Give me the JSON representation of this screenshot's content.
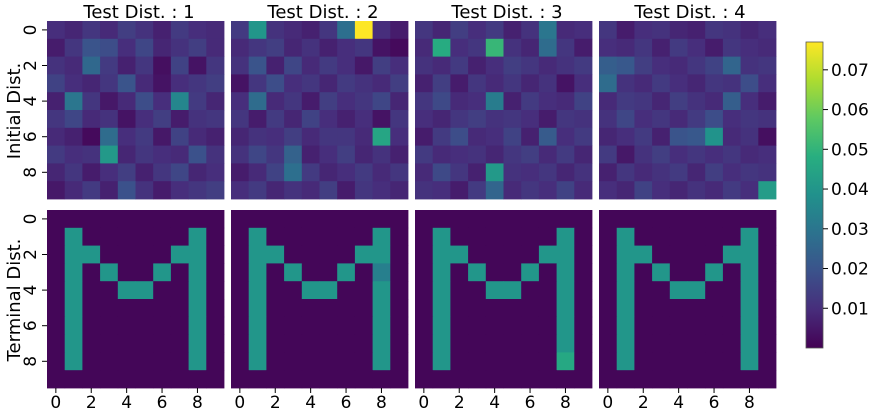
{
  "chart_data": {
    "type": "heatmap",
    "colormap": "viridis",
    "grid_size": 10,
    "column_titles": [
      "Test Dist. : 1",
      "Test Dist. : 2",
      "Test Dist. : 3",
      "Test Dist. : 4"
    ],
    "row_labels": [
      "Initial Dist.",
      "Terminal Dist."
    ],
    "axis_ticks": [
      "0",
      "2",
      "4",
      "6",
      "8"
    ],
    "colorbar": {
      "vmin": 0.0,
      "vmax": 0.077,
      "tick_values": [
        0.01,
        0.02,
        0.03,
        0.04,
        0.05,
        0.06,
        0.07
      ],
      "tick_labels": [
        "0.01",
        "0.02",
        "0.03",
        "0.04",
        "0.05",
        "0.06",
        "0.07"
      ]
    },
    "panels": [
      {
        "row": "Initial Dist.",
        "test_dist": 1,
        "values": [
          [
            0.01,
            0.008,
            0.012,
            0.009,
            0.014,
            0.011,
            0.007,
            0.013,
            0.01,
            0.009
          ],
          [
            0.006,
            0.012,
            0.02,
            0.018,
            0.01,
            0.016,
            0.008,
            0.011,
            0.014,
            0.009
          ],
          [
            0.011,
            0.009,
            0.026,
            0.013,
            0.007,
            0.012,
            0.003,
            0.015,
            0.004,
            0.012
          ],
          [
            0.015,
            0.01,
            0.008,
            0.012,
            0.02,
            0.009,
            0.004,
            0.01,
            0.012,
            0.014
          ],
          [
            0.007,
            0.03,
            0.012,
            0.005,
            0.009,
            0.018,
            0.01,
            0.035,
            0.013,
            0.008
          ],
          [
            0.012,
            0.016,
            0.009,
            0.011,
            0.004,
            0.01,
            0.014,
            0.006,
            0.011,
            0.012
          ],
          [
            0.009,
            0.007,
            0.002,
            0.027,
            0.01,
            0.013,
            0.005,
            0.015,
            0.009,
            0.007
          ],
          [
            0.013,
            0.01,
            0.011,
            0.041,
            0.008,
            0.012,
            0.01,
            0.009,
            0.019,
            0.011
          ],
          [
            0.008,
            0.012,
            0.006,
            0.01,
            0.014,
            0.007,
            0.012,
            0.016,
            0.008,
            0.01
          ],
          [
            0.005,
            0.009,
            0.013,
            0.007,
            0.019,
            0.011,
            0.006,
            0.01,
            0.012,
            0.014
          ]
        ]
      },
      {
        "row": "Initial Dist.",
        "test_dist": 2,
        "values": [
          [
            0.013,
            0.04,
            0.011,
            0.009,
            0.007,
            0.012,
            0.028,
            0.077,
            0.01,
            0.006
          ],
          [
            0.009,
            0.012,
            0.014,
            0.008,
            0.011,
            0.007,
            0.01,
            0.012,
            0.004,
            0.002
          ],
          [
            0.011,
            0.02,
            0.007,
            0.016,
            0.009,
            0.013,
            0.01,
            0.005,
            0.014,
            0.01
          ],
          [
            0.004,
            0.012,
            0.018,
            0.01,
            0.012,
            0.008,
            0.013,
            0.011,
            0.009,
            0.014
          ],
          [
            0.01,
            0.027,
            0.009,
            0.012,
            0.006,
            0.014,
            0.01,
            0.012,
            0.016,
            0.008
          ],
          [
            0.012,
            0.006,
            0.013,
            0.008,
            0.015,
            0.01,
            0.007,
            0.01,
            0.004,
            0.012
          ],
          [
            0.008,
            0.011,
            0.01,
            0.014,
            0.009,
            0.012,
            0.012,
            0.009,
            0.045,
            0.01
          ],
          [
            0.011,
            0.016,
            0.012,
            0.024,
            0.007,
            0.01,
            0.014,
            0.008,
            0.011,
            0.007
          ],
          [
            0.006,
            0.009,
            0.015,
            0.028,
            0.013,
            0.008,
            0.01,
            0.013,
            0.009,
            0.012
          ],
          [
            0.01,
            0.013,
            0.008,
            0.011,
            0.009,
            0.014,
            0.006,
            0.012,
            0.01,
            0.008
          ]
        ]
      },
      {
        "row": "Initial Dist.",
        "test_dist": 3,
        "values": [
          [
            0.012,
            0.008,
            0.014,
            0.01,
            0.013,
            0.007,
            0.011,
            0.03,
            0.009,
            0.01
          ],
          [
            0.009,
            0.047,
            0.01,
            0.012,
            0.051,
            0.011,
            0.008,
            0.027,
            0.012,
            0.006
          ],
          [
            0.011,
            0.009,
            0.013,
            0.007,
            0.01,
            0.014,
            0.012,
            0.009,
            0.011,
            0.013
          ],
          [
            0.007,
            0.014,
            0.006,
            0.012,
            0.009,
            0.012,
            0.008,
            0.011,
            0.004,
            0.01
          ],
          [
            0.012,
            0.017,
            0.009,
            0.01,
            0.032,
            0.007,
            0.013,
            0.01,
            0.009,
            0.015
          ],
          [
            0.01,
            0.008,
            0.012,
            0.014,
            0.011,
            0.012,
            0.01,
            0.006,
            0.012,
            0.011
          ],
          [
            0.006,
            0.013,
            0.018,
            0.009,
            0.01,
            0.015,
            0.007,
            0.022,
            0.01,
            0.013
          ],
          [
            0.013,
            0.009,
            0.01,
            0.011,
            0.008,
            0.012,
            0.014,
            0.009,
            0.013,
            0.008
          ],
          [
            0.009,
            0.017,
            0.012,
            0.007,
            0.041,
            0.011,
            0.01,
            0.012,
            0.008,
            0.011
          ],
          [
            0.011,
            0.01,
            0.006,
            0.013,
            0.025,
            0.009,
            0.012,
            0.01,
            0.015,
            0.009
          ]
        ]
      },
      {
        "row": "Initial Dist.",
        "test_dist": 4,
        "values": [
          [
            0.012,
            0.006,
            0.01,
            0.011,
            0.008,
            0.007,
            0.012,
            0.011,
            0.008,
            0.01
          ],
          [
            0.01,
            0.009,
            0.012,
            0.007,
            0.013,
            0.01,
            0.006,
            0.012,
            0.01,
            0.009
          ],
          [
            0.023,
            0.021,
            0.014,
            0.01,
            0.009,
            0.012,
            0.015,
            0.025,
            0.011,
            0.012
          ],
          [
            0.027,
            0.011,
            0.009,
            0.013,
            0.01,
            0.008,
            0.012,
            0.011,
            0.018,
            0.01
          ],
          [
            0.009,
            0.013,
            0.012,
            0.008,
            0.014,
            0.011,
            0.009,
            0.023,
            0.01,
            0.006
          ],
          [
            0.011,
            0.016,
            0.01,
            0.012,
            0.009,
            0.013,
            0.018,
            0.01,
            0.012,
            0.011
          ],
          [
            0.008,
            0.01,
            0.013,
            0.007,
            0.02,
            0.021,
            0.039,
            0.009,
            0.011,
            0.003
          ],
          [
            0.013,
            0.005,
            0.011,
            0.014,
            0.01,
            0.012,
            0.01,
            0.012,
            0.009,
            0.01
          ],
          [
            0.007,
            0.012,
            0.009,
            0.011,
            0.013,
            0.008,
            0.014,
            0.01,
            0.012,
            0.011
          ],
          [
            0.01,
            0.008,
            0.015,
            0.01,
            0.008,
            0.011,
            0.009,
            0.013,
            0.01,
            0.042
          ]
        ]
      },
      {
        "row": "Terminal Dist.",
        "test_dist": 1,
        "values": [
          [
            0.001,
            0.001,
            0.001,
            0.001,
            0.001,
            0.001,
            0.001,
            0.001,
            0.001,
            0.001
          ],
          [
            0.001,
            0.04,
            0.001,
            0.001,
            0.001,
            0.001,
            0.001,
            0.001,
            0.04,
            0.001
          ],
          [
            0.001,
            0.04,
            0.04,
            0.001,
            0.001,
            0.001,
            0.001,
            0.04,
            0.04,
            0.001
          ],
          [
            0.001,
            0.04,
            0.001,
            0.04,
            0.001,
            0.001,
            0.04,
            0.001,
            0.04,
            0.001
          ],
          [
            0.001,
            0.04,
            0.001,
            0.001,
            0.04,
            0.04,
            0.001,
            0.001,
            0.04,
            0.001
          ],
          [
            0.001,
            0.04,
            0.001,
            0.001,
            0.001,
            0.001,
            0.001,
            0.001,
            0.04,
            0.001
          ],
          [
            0.001,
            0.04,
            0.001,
            0.001,
            0.001,
            0.001,
            0.001,
            0.001,
            0.04,
            0.001
          ],
          [
            0.001,
            0.04,
            0.001,
            0.001,
            0.001,
            0.001,
            0.001,
            0.001,
            0.04,
            0.001
          ],
          [
            0.001,
            0.04,
            0.001,
            0.001,
            0.001,
            0.001,
            0.001,
            0.001,
            0.04,
            0.001
          ],
          [
            0.001,
            0.001,
            0.001,
            0.001,
            0.001,
            0.001,
            0.001,
            0.001,
            0.001,
            0.001
          ]
        ]
      },
      {
        "row": "Terminal Dist.",
        "test_dist": 2,
        "values": [
          [
            0.001,
            0.001,
            0.001,
            0.001,
            0.001,
            0.001,
            0.001,
            0.001,
            0.001,
            0.001
          ],
          [
            0.001,
            0.04,
            0.001,
            0.001,
            0.001,
            0.001,
            0.001,
            0.001,
            0.04,
            0.001
          ],
          [
            0.001,
            0.04,
            0.04,
            0.001,
            0.001,
            0.001,
            0.001,
            0.04,
            0.04,
            0.001
          ],
          [
            0.001,
            0.04,
            0.001,
            0.04,
            0.001,
            0.001,
            0.04,
            0.001,
            0.033,
            0.001
          ],
          [
            0.001,
            0.04,
            0.001,
            0.001,
            0.04,
            0.04,
            0.001,
            0.001,
            0.04,
            0.001
          ],
          [
            0.001,
            0.04,
            0.001,
            0.001,
            0.001,
            0.001,
            0.001,
            0.001,
            0.04,
            0.001
          ],
          [
            0.001,
            0.04,
            0.001,
            0.001,
            0.001,
            0.001,
            0.001,
            0.001,
            0.04,
            0.001
          ],
          [
            0.001,
            0.04,
            0.001,
            0.001,
            0.001,
            0.001,
            0.001,
            0.001,
            0.04,
            0.001
          ],
          [
            0.001,
            0.04,
            0.001,
            0.001,
            0.001,
            0.001,
            0.001,
            0.001,
            0.04,
            0.001
          ],
          [
            0.001,
            0.001,
            0.001,
            0.001,
            0.001,
            0.001,
            0.001,
            0.001,
            0.001,
            0.001
          ]
        ]
      },
      {
        "row": "Terminal Dist.",
        "test_dist": 3,
        "values": [
          [
            0.001,
            0.001,
            0.001,
            0.001,
            0.001,
            0.001,
            0.001,
            0.001,
            0.001,
            0.001
          ],
          [
            0.001,
            0.04,
            0.001,
            0.001,
            0.001,
            0.001,
            0.001,
            0.001,
            0.04,
            0.001
          ],
          [
            0.001,
            0.04,
            0.04,
            0.001,
            0.001,
            0.001,
            0.001,
            0.04,
            0.04,
            0.001
          ],
          [
            0.001,
            0.04,
            0.001,
            0.04,
            0.001,
            0.001,
            0.04,
            0.001,
            0.04,
            0.001
          ],
          [
            0.001,
            0.04,
            0.001,
            0.001,
            0.04,
            0.04,
            0.001,
            0.001,
            0.04,
            0.001
          ],
          [
            0.001,
            0.04,
            0.001,
            0.001,
            0.001,
            0.001,
            0.001,
            0.001,
            0.04,
            0.001
          ],
          [
            0.001,
            0.04,
            0.001,
            0.001,
            0.001,
            0.001,
            0.001,
            0.001,
            0.04,
            0.001
          ],
          [
            0.001,
            0.04,
            0.001,
            0.001,
            0.001,
            0.001,
            0.001,
            0.001,
            0.04,
            0.001
          ],
          [
            0.001,
            0.04,
            0.001,
            0.001,
            0.001,
            0.001,
            0.001,
            0.001,
            0.046,
            0.001
          ],
          [
            0.001,
            0.001,
            0.001,
            0.001,
            0.001,
            0.001,
            0.001,
            0.001,
            0.001,
            0.001
          ]
        ]
      },
      {
        "row": "Terminal Dist.",
        "test_dist": 4,
        "values": [
          [
            0.001,
            0.001,
            0.001,
            0.001,
            0.001,
            0.001,
            0.001,
            0.001,
            0.001,
            0.001
          ],
          [
            0.001,
            0.04,
            0.001,
            0.001,
            0.001,
            0.001,
            0.001,
            0.001,
            0.04,
            0.001
          ],
          [
            0.001,
            0.04,
            0.04,
            0.001,
            0.001,
            0.001,
            0.001,
            0.04,
            0.04,
            0.001
          ],
          [
            0.001,
            0.04,
            0.001,
            0.04,
            0.001,
            0.001,
            0.04,
            0.001,
            0.04,
            0.001
          ],
          [
            0.001,
            0.04,
            0.001,
            0.001,
            0.04,
            0.04,
            0.001,
            0.001,
            0.04,
            0.001
          ],
          [
            0.001,
            0.04,
            0.001,
            0.001,
            0.001,
            0.001,
            0.001,
            0.001,
            0.04,
            0.001
          ],
          [
            0.001,
            0.04,
            0.001,
            0.001,
            0.001,
            0.001,
            0.001,
            0.001,
            0.04,
            0.001
          ],
          [
            0.001,
            0.04,
            0.001,
            0.001,
            0.001,
            0.001,
            0.001,
            0.001,
            0.04,
            0.001
          ],
          [
            0.001,
            0.04,
            0.001,
            0.001,
            0.001,
            0.001,
            0.001,
            0.001,
            0.04,
            0.001
          ],
          [
            0.001,
            0.001,
            0.001,
            0.001,
            0.001,
            0.001,
            0.001,
            0.001,
            0.001,
            0.001
          ]
        ]
      }
    ]
  }
}
